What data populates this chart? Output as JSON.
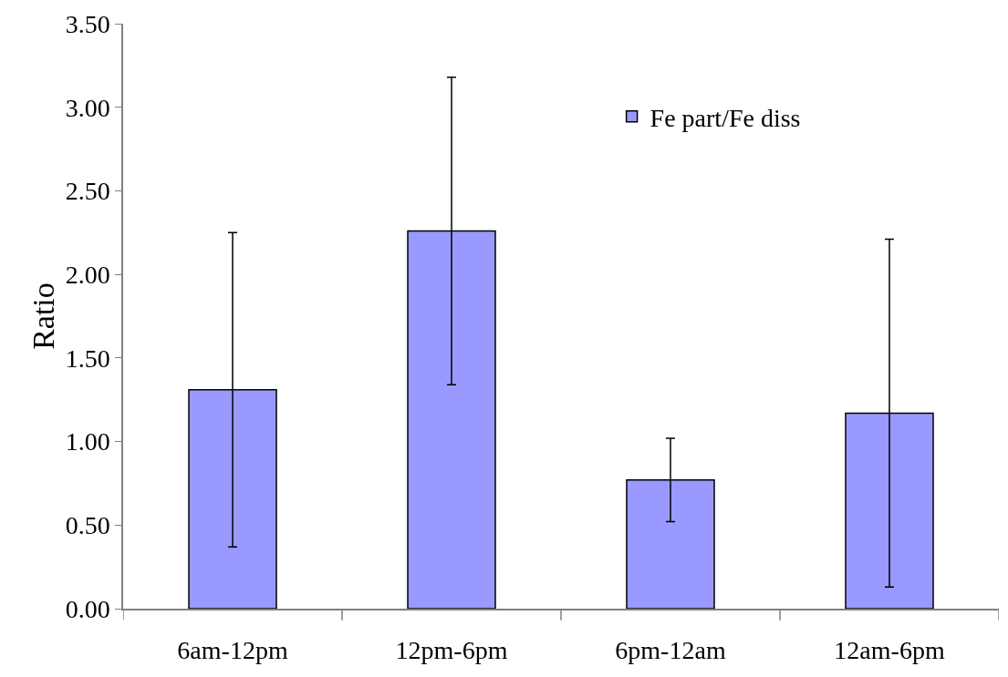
{
  "chart_data": {
    "type": "bar",
    "ylabel": "Ratio",
    "categories": [
      "6am-12pm",
      "12pm-6pm",
      "6pm-12am",
      "12am-6pm"
    ],
    "series": [
      {
        "name": "Fe part/Fe diss",
        "color": "#9999ff",
        "values": [
          1.31,
          2.26,
          0.77,
          1.17
        ],
        "errors": [
          0.94,
          0.92,
          0.25,
          1.04
        ]
      }
    ],
    "ylim": [
      0,
      3.5
    ],
    "yticks": [
      {
        "value": 0,
        "label": "0.00"
      },
      {
        "value": 0.5,
        "label": "0.50"
      },
      {
        "value": 1,
        "label": "1.00"
      },
      {
        "value": 1.5,
        "label": "1.50"
      },
      {
        "value": 2,
        "label": "2.00"
      },
      {
        "value": 2.5,
        "label": "2.50"
      },
      {
        "value": 3,
        "label": "3.00"
      },
      {
        "value": 3.5,
        "label": "3.50"
      }
    ],
    "legend": "top right"
  }
}
